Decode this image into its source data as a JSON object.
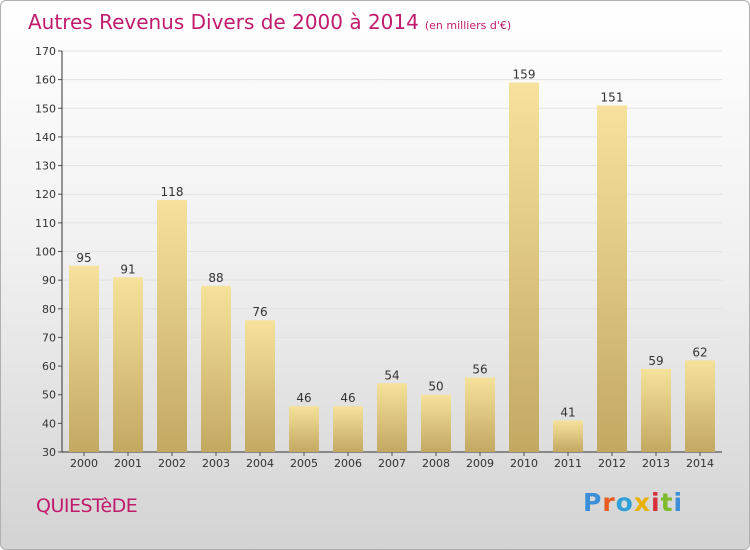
{
  "chart_data": {
    "type": "bar",
    "title": "Autres Revenus Divers de 2000 à 2014",
    "subtitle": "(en milliers d'€)",
    "categories": [
      "2000",
      "2001",
      "2002",
      "2003",
      "2004",
      "2005",
      "2006",
      "2007",
      "2008",
      "2009",
      "2010",
      "2011",
      "2012",
      "2013",
      "2014"
    ],
    "values": [
      95,
      91,
      118,
      88,
      76,
      46,
      46,
      54,
      50,
      56,
      159,
      41,
      151,
      59,
      62
    ],
    "ylim": [
      30,
      170
    ],
    "yticks": [
      30,
      40,
      50,
      60,
      70,
      80,
      90,
      100,
      110,
      120,
      130,
      140,
      150,
      160,
      170
    ],
    "grid": true,
    "colors": {
      "bar_top": "#f6e29c",
      "bar_bottom": "#c3a862",
      "title": "#c01b6c"
    }
  },
  "footer": {
    "commune": "QUIESTèDE",
    "brand": "Proxiti",
    "brand_colors": [
      "#3b8fd9",
      "#e85c20",
      "#2fa0d8",
      "#e8b100",
      "#d6303d",
      "#7dbb2c",
      "#3b8fd9"
    ]
  }
}
